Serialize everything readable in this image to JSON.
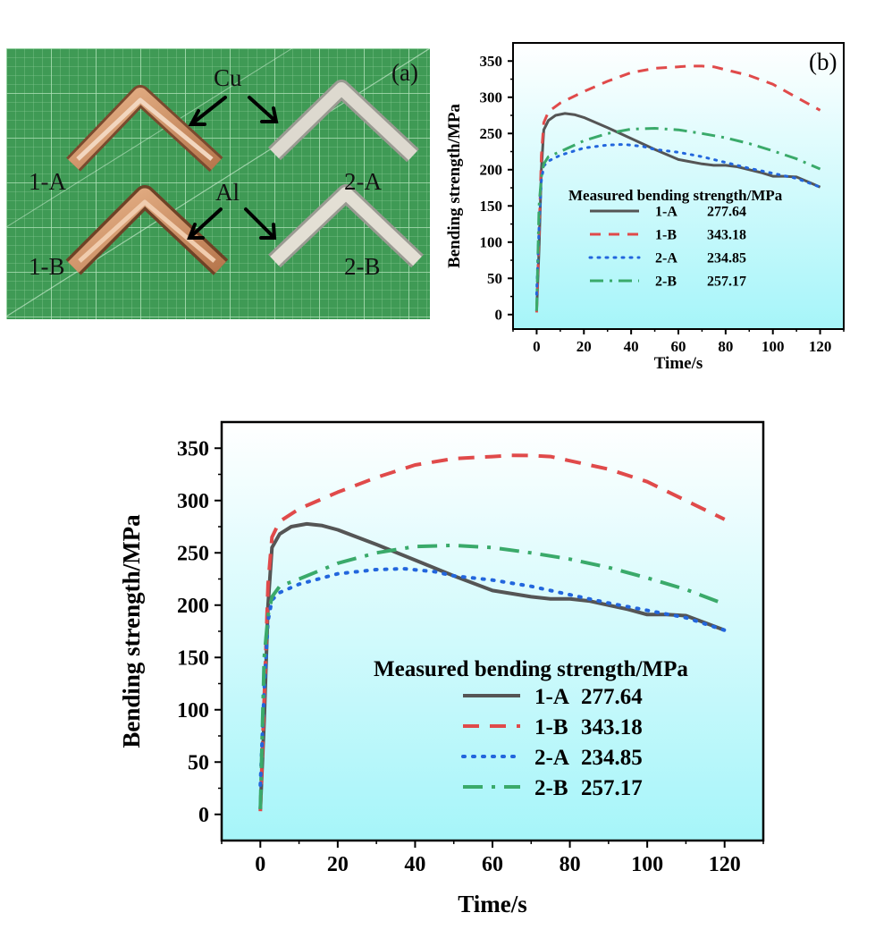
{
  "photo": {
    "panel_label": "(a)",
    "material_top": "Cu",
    "material_bottom": "Al",
    "samples": [
      "1-A",
      "2-A",
      "1-B",
      "2-B"
    ]
  },
  "chart_data": [
    {
      "id": "small",
      "panel_label": "(b)",
      "type": "line",
      "xlabel": "Time/s",
      "ylabel": "Bending strength/MPa",
      "xlim": [
        -10,
        130
      ],
      "ylim": [
        -20,
        375
      ],
      "xticks": [
        0,
        20,
        40,
        60,
        80,
        100,
        120
      ],
      "yticks": [
        0,
        50,
        100,
        150,
        200,
        250,
        300,
        350
      ],
      "legend_title": "Measured bending strength/MPa",
      "legend_position": "lower-right",
      "background": [
        "#ffffff",
        "#a6f5f9"
      ],
      "series": [
        {
          "name": "1-A",
          "value_label": "277.64",
          "color": "#555555",
          "style": "solid",
          "x": [
            0,
            1,
            2,
            3,
            5,
            8,
            12,
            16,
            20,
            30,
            40,
            50,
            60,
            70,
            75,
            80,
            85,
            90,
            95,
            100,
            105,
            110,
            115,
            120
          ],
          "y": [
            5,
            90,
            200,
            255,
            268,
            275,
            277.64,
            276,
            272,
            258,
            243,
            228,
            214,
            208,
            206,
            206,
            204,
            200,
            196,
            191,
            191,
            190,
            183,
            176
          ]
        },
        {
          "name": "1-B",
          "value_label": "343.18",
          "color": "#e04a4a",
          "style": "dashed",
          "x": [
            0,
            1,
            2,
            3,
            5,
            10,
            20,
            30,
            40,
            50,
            60,
            65,
            70,
            75,
            80,
            90,
            100,
            110,
            120
          ],
          "y": [
            3,
            110,
            220,
            265,
            280,
            292,
            308,
            322,
            334,
            340,
            342,
            343.18,
            343,
            342,
            338,
            330,
            318,
            300,
            282
          ]
        },
        {
          "name": "2-A",
          "value_label": "234.85",
          "color": "#2266dd",
          "style": "dotted",
          "x": [
            0,
            1,
            2,
            3,
            5,
            10,
            20,
            30,
            37,
            45,
            50,
            60,
            70,
            80,
            90,
            100,
            110,
            120
          ],
          "y": [
            28,
            120,
            185,
            205,
            212,
            220,
            230,
            234,
            234.85,
            232,
            228,
            224,
            218,
            210,
            202,
            195,
            188,
            176
          ]
        },
        {
          "name": "2-B",
          "value_label": "257.17",
          "color": "#3aaa6a",
          "style": "dashdot",
          "x": [
            0,
            1,
            2,
            3,
            5,
            10,
            20,
            30,
            40,
            50,
            60,
            70,
            80,
            90,
            100,
            110,
            120
          ],
          "y": [
            5,
            150,
            190,
            208,
            218,
            225,
            240,
            250,
            256,
            257.17,
            255,
            250,
            244,
            236,
            226,
            215,
            201
          ]
        }
      ]
    },
    {
      "id": "large",
      "panel_label": "",
      "type": "line",
      "xlabel": "Time/s",
      "ylabel": "Bending strength/MPa",
      "xlim": [
        -10,
        130
      ],
      "ylim": [
        -25,
        375
      ],
      "xticks": [
        0,
        20,
        40,
        60,
        80,
        100,
        120
      ],
      "yticks": [
        0,
        50,
        100,
        150,
        200,
        250,
        300,
        350
      ],
      "legend_title": "Measured bending strength/MPa",
      "legend_position": "lower-right",
      "background": [
        "#ffffff",
        "#a6f5f9"
      ],
      "series": [
        {
          "name": "1-A",
          "value_label": "277.64",
          "color": "#555555",
          "style": "solid",
          "x": [
            0,
            1,
            2,
            3,
            5,
            8,
            12,
            16,
            20,
            30,
            40,
            50,
            60,
            70,
            75,
            80,
            85,
            90,
            95,
            100,
            105,
            110,
            115,
            120
          ],
          "y": [
            5,
            90,
            200,
            255,
            268,
            275,
            277.64,
            276,
            272,
            258,
            243,
            228,
            214,
            208,
            206,
            206,
            204,
            200,
            196,
            191,
            191,
            190,
            183,
            176
          ]
        },
        {
          "name": "1-B",
          "value_label": "343.18",
          "color": "#e04a4a",
          "style": "dashed",
          "x": [
            0,
            1,
            2,
            3,
            5,
            10,
            20,
            30,
            40,
            50,
            60,
            65,
            70,
            75,
            80,
            90,
            100,
            110,
            120
          ],
          "y": [
            3,
            110,
            220,
            265,
            280,
            292,
            308,
            322,
            334,
            340,
            342,
            343.18,
            343,
            342,
            338,
            330,
            318,
            300,
            282
          ]
        },
        {
          "name": "2-A",
          "value_label": "234.85",
          "color": "#2266dd",
          "style": "dotted",
          "x": [
            0,
            1,
            2,
            3,
            5,
            10,
            20,
            30,
            37,
            45,
            50,
            60,
            70,
            80,
            90,
            100,
            110,
            120
          ],
          "y": [
            28,
            120,
            185,
            205,
            212,
            220,
            230,
            234,
            234.85,
            232,
            228,
            224,
            218,
            210,
            202,
            195,
            188,
            176
          ]
        },
        {
          "name": "2-B",
          "value_label": "257.17",
          "color": "#3aaa6a",
          "style": "dashdot",
          "x": [
            0,
            1,
            2,
            3,
            5,
            10,
            20,
            30,
            40,
            50,
            60,
            70,
            80,
            90,
            100,
            110,
            120
          ],
          "y": [
            5,
            150,
            190,
            208,
            218,
            225,
            240,
            250,
            256,
            257.17,
            255,
            250,
            244,
            236,
            226,
            215,
            201
          ]
        }
      ]
    }
  ]
}
